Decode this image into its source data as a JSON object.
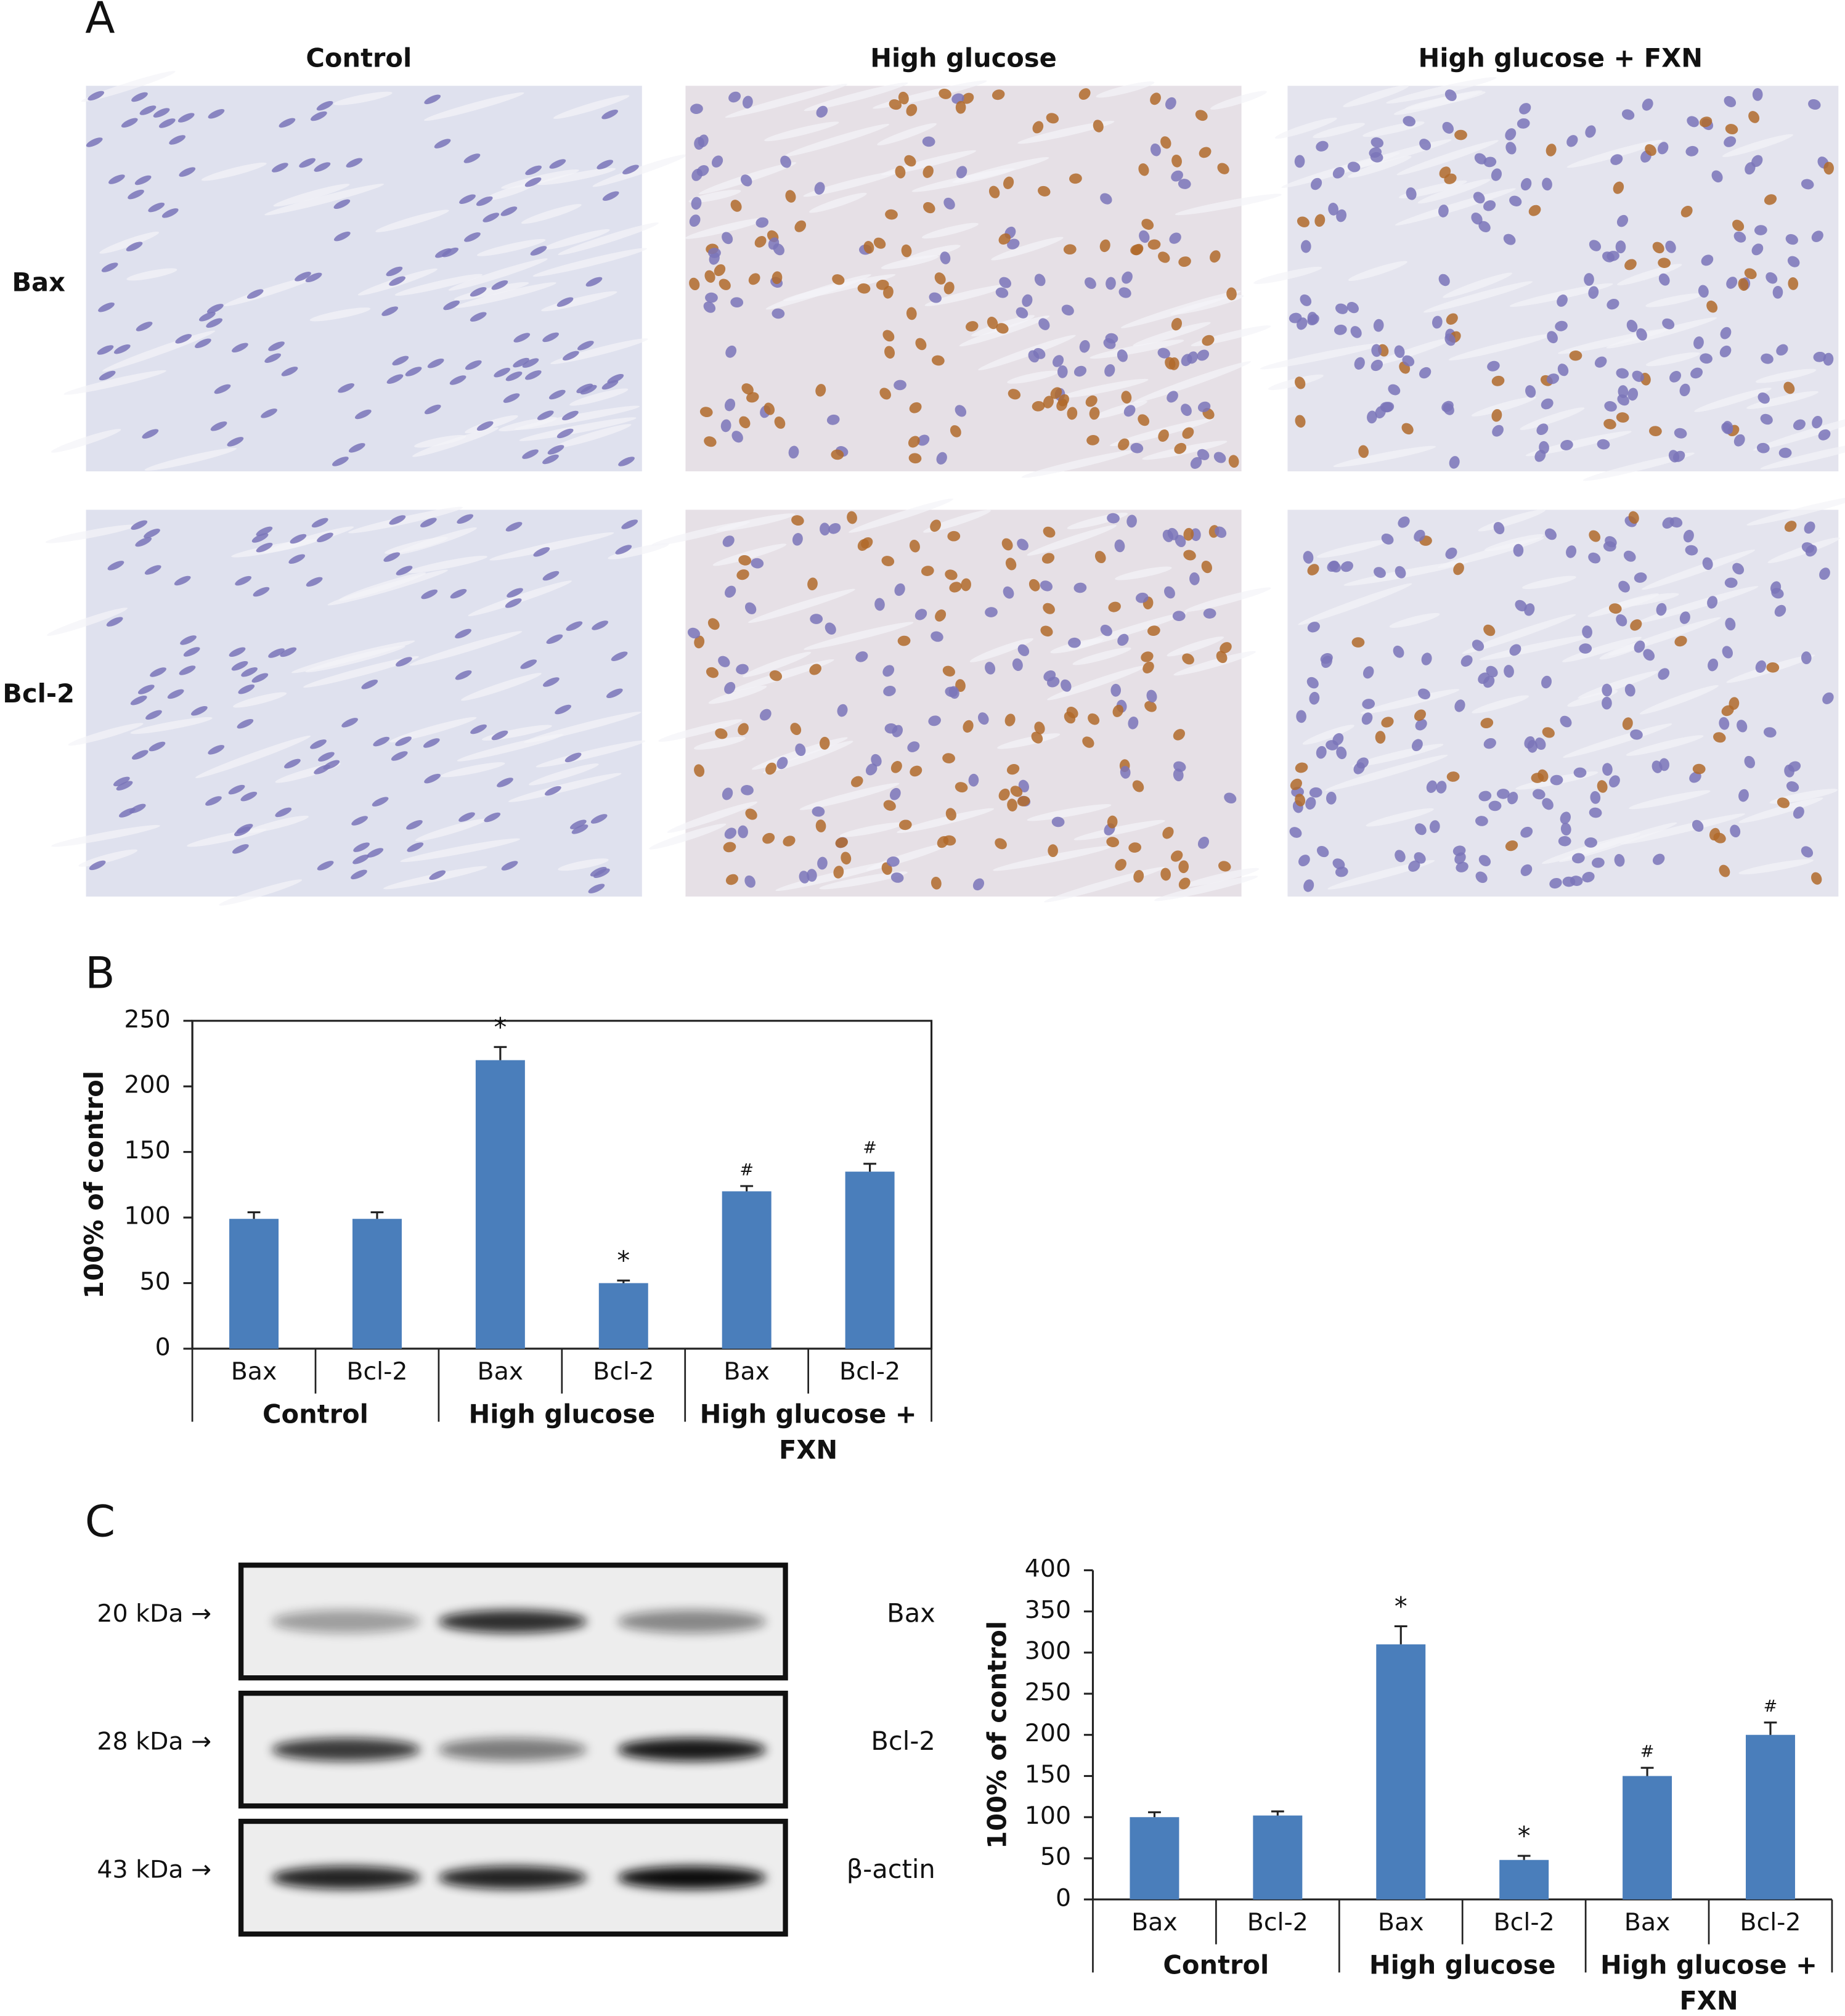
{
  "panel_labels": [
    "A",
    "B",
    "C"
  ],
  "panel_a": {
    "columns": [
      "Control",
      "High glucose",
      "High glucose + FXN"
    ],
    "rows": [
      "Bax",
      "Bcl-2"
    ]
  },
  "panel_c_blot": {
    "bands": [
      {
        "weight": "20 kDa →",
        "protein": "Bax"
      },
      {
        "weight": "28 kDa →",
        "protein": "Bcl-2"
      },
      {
        "weight": "43 kDa →",
        "protein": "β-actin"
      }
    ]
  },
  "chart_data": [
    {
      "type": "bar",
      "ylabel": "100% of control",
      "categories": [
        "Bax",
        "Bcl-2",
        "Bax",
        "Bcl-2",
        "Bax",
        "Bcl-2"
      ],
      "groups": [
        "Control",
        "High glucose",
        "High glucose + FXN"
      ],
      "values": [
        99,
        99,
        220,
        50,
        120,
        135
      ],
      "errors": [
        5,
        5,
        10,
        2,
        4,
        6
      ],
      "annotations": [
        null,
        null,
        "*",
        "*",
        "#",
        "#"
      ],
      "color": "#4a7ebb",
      "box": true,
      "ylim": [
        0,
        250
      ],
      "yticks": [
        0,
        50,
        100,
        150,
        200,
        250
      ]
    },
    {
      "type": "bar",
      "ylabel": "100% of control",
      "categories": [
        "Bax",
        "Bcl-2",
        "Bax",
        "Bcl-2",
        "Bax",
        "Bcl-2"
      ],
      "groups": [
        "Control",
        "High glucose",
        "High glucose + FXN"
      ],
      "values": [
        100,
        102,
        310,
        48,
        150,
        200
      ],
      "errors": [
        6,
        5,
        22,
        5,
        10,
        15
      ],
      "annotations": [
        null,
        null,
        "*",
        "*",
        "#",
        "#"
      ],
      "color": "#4a7ebb",
      "box": false,
      "ylim": [
        0,
        400
      ],
      "yticks": [
        0,
        50,
        100,
        150,
        200,
        250,
        300,
        350,
        400
      ]
    }
  ]
}
